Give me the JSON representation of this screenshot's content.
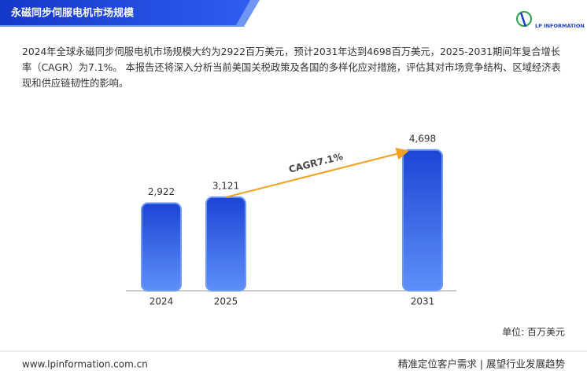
{
  "header": {
    "title": "永磁同步伺服电机市场规模",
    "logo_text": "LP INFORMATION"
  },
  "intro": "2024年全球永磁同步伺服电机市场规模大约为2922百万美元，预计2031年达到4698百万美元，2025-2031期间年复合增长率（CAGR）为7.1%。 本报告还将深入分析当前美国关税政策及各国的多样化应对措施，评估其对市场竞争结构、区域经济表现和供应链韧性的影响。",
  "chart_data": {
    "type": "bar",
    "categories": [
      "2024",
      "2025",
      "2031"
    ],
    "values": [
      2922,
      3121,
      4698
    ],
    "value_labels": [
      "2,922",
      "3,121",
      "4,698"
    ],
    "color": "#2a5be0",
    "annotation": "CAGR7.1%",
    "annotation_color": "#f5a020",
    "unit": "单位: 百万美元"
  },
  "footer": {
    "website": "www.lpinformation.com.cn",
    "slogan": "精准定位客户需求 | 展望行业发展趋势"
  }
}
